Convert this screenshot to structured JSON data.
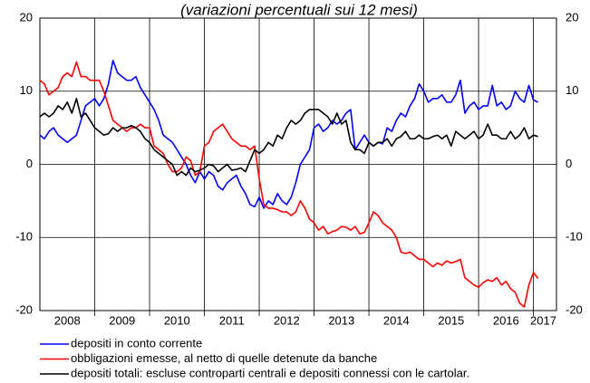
{
  "chart_data": {
    "type": "line",
    "title": "(variazioni percentuali sui 12 mesi)",
    "x": [
      2008.0,
      2008.083,
      2008.167,
      2008.25,
      2008.333,
      2008.417,
      2008.5,
      2008.583,
      2008.667,
      2008.75,
      2008.833,
      2008.917,
      2009.0,
      2009.083,
      2009.167,
      2009.25,
      2009.333,
      2009.417,
      2009.5,
      2009.583,
      2009.667,
      2009.75,
      2009.833,
      2009.917,
      2010.0,
      2010.083,
      2010.167,
      2010.25,
      2010.333,
      2010.417,
      2010.5,
      2010.583,
      2010.667,
      2010.75,
      2010.833,
      2010.917,
      2011.0,
      2011.083,
      2011.167,
      2011.25,
      2011.333,
      2011.417,
      2011.5,
      2011.583,
      2011.667,
      2011.75,
      2011.833,
      2011.917,
      2012.0,
      2012.083,
      2012.167,
      2012.25,
      2012.333,
      2012.417,
      2012.5,
      2012.583,
      2012.667,
      2012.75,
      2012.833,
      2012.917,
      2013.0,
      2013.083,
      2013.167,
      2013.25,
      2013.333,
      2013.417,
      2013.5,
      2013.583,
      2013.667,
      2013.75,
      2013.833,
      2013.917,
      2014.0,
      2014.083,
      2014.167,
      2014.25,
      2014.333,
      2014.417,
      2014.5,
      2014.583,
      2014.667,
      2014.75,
      2014.833,
      2014.917,
      2015.0,
      2015.083,
      2015.167,
      2015.25,
      2015.333,
      2015.417,
      2015.5,
      2015.583,
      2015.667,
      2015.75,
      2015.833,
      2015.917,
      2016.0,
      2016.083,
      2016.167,
      2016.25,
      2016.333,
      2016.417,
      2016.5,
      2016.583,
      2016.667,
      2016.75,
      2016.833,
      2016.917,
      2017.0,
      2017.083
    ],
    "series": [
      {
        "name": "depositi in conto corrente",
        "color": "#0000ff",
        "values": [
          4,
          3.5,
          4.5,
          5,
          4,
          3.5,
          3,
          3.5,
          4,
          6,
          8,
          8.5,
          9,
          8,
          9,
          11,
          14.2,
          12.5,
          12,
          11.5,
          11.5,
          12,
          10.5,
          9.5,
          8.5,
          7.5,
          6,
          4,
          3.5,
          3,
          2,
          1,
          0,
          -1.5,
          -2.5,
          -1,
          -2,
          -1,
          -1.5,
          -3,
          -3.5,
          -2.5,
          -2,
          -1.5,
          -3,
          -4,
          -5.5,
          -5.8,
          -4.5,
          -6,
          -5,
          -5.5,
          -4,
          -5,
          -5.5,
          -4.5,
          -2.5,
          0,
          1,
          2,
          5,
          5.5,
          4.5,
          5,
          6,
          5.5,
          6,
          7,
          7.5,
          2,
          3,
          4,
          3,
          2.5,
          3,
          2.8,
          5,
          4.5,
          6,
          7,
          6.5,
          8,
          9,
          11,
          10,
          8.5,
          9,
          9,
          9.5,
          8.5,
          8.5,
          9.5,
          11.5,
          7,
          8,
          8.5,
          7.5,
          8,
          8,
          10.8,
          8,
          8.5,
          7.5,
          8,
          10,
          9,
          8.5,
          10.8,
          8.8,
          8.5
        ]
      },
      {
        "name": "obbligazioni emesse, al netto di quelle detenute da banche",
        "color": "#ff0000",
        "values": [
          11.5,
          11,
          9.5,
          10,
          10.5,
          12,
          12.5,
          12,
          14,
          12,
          12,
          11.5,
          11.5,
          11.5,
          10,
          8,
          6,
          5.5,
          5,
          4.5,
          5,
          5,
          5.5,
          5,
          5,
          2.5,
          2,
          1.5,
          0,
          -1,
          -1,
          -0.5,
          1,
          0.5,
          -1.5,
          -1,
          2.5,
          3,
          4.5,
          5,
          5.5,
          4.5,
          3.5,
          3,
          2.5,
          2.5,
          2,
          2.5,
          -2,
          -5.5,
          -6,
          -6,
          -6.2,
          -6.5,
          -6.5,
          -7,
          -6.5,
          -5,
          -6,
          -7.5,
          -8,
          -9,
          -8.5,
          -9.5,
          -9.2,
          -9,
          -8.5,
          -8.6,
          -9,
          -8.5,
          -9.5,
          -9.3,
          -8,
          -6.5,
          -7,
          -8,
          -8.5,
          -9,
          -10,
          -12,
          -12.2,
          -12,
          -12.5,
          -13,
          -13,
          -13.5,
          -14,
          -13.5,
          -13.8,
          -13.2,
          -13.5,
          -13.3,
          -13,
          -15.5,
          -16,
          -16.5,
          -16.8,
          -16.2,
          -15.8,
          -16,
          -15.5,
          -16.5,
          -16,
          -17,
          -17.5,
          -19,
          -19.5,
          -16.5,
          -14.8,
          -15.6
        ]
      },
      {
        "name": "depositi totali: escluse controparti centrali e depositi connessi con le cartolar.",
        "color": "#000000",
        "values": [
          6.5,
          7,
          6.5,
          7,
          8,
          7.5,
          8.5,
          7,
          9,
          6.5,
          7,
          6,
          5,
          4.5,
          4,
          4.2,
          5,
          4.5,
          5,
          5,
          5.3,
          5,
          4.5,
          3.5,
          3,
          2,
          1.5,
          1,
          0.5,
          0,
          -1.5,
          -1,
          -1.5,
          -0.5,
          -1,
          -0.8,
          -0.5,
          0,
          -0.2,
          -1,
          -0.5,
          0,
          -0.8,
          -0.7,
          -0.5,
          -1,
          0.5,
          2,
          1.5,
          2,
          3,
          2.5,
          4,
          3.5,
          5,
          6,
          5.5,
          6,
          7,
          7.5,
          7.5,
          7.5,
          7,
          6.5,
          5.5,
          7,
          5.5,
          6,
          3,
          2,
          2,
          1.5,
          3,
          2.5,
          3,
          3,
          3.5,
          2.5,
          3.5,
          3.8,
          4.5,
          3.5,
          3.5,
          4,
          3.5,
          3.5,
          3.8,
          4,
          3.5,
          4,
          2.5,
          4.5,
          4,
          3.5,
          4,
          4.5,
          3.5,
          4,
          5.5,
          4,
          4,
          3.5,
          3.5,
          4.5,
          3.5,
          4,
          5,
          3.5,
          4,
          3.8
        ]
      }
    ],
    "xlim": [
      2008,
      2017.42
    ],
    "xticks": [
      {
        "value": 2008.5,
        "label": "2008"
      },
      {
        "value": 2009.5,
        "label": "2009"
      },
      {
        "value": 2010.5,
        "label": "2010"
      },
      {
        "value": 2011.5,
        "label": "2011"
      },
      {
        "value": 2012.5,
        "label": "2012"
      },
      {
        "value": 2013.5,
        "label": "2013"
      },
      {
        "value": 2014.5,
        "label": "2014"
      },
      {
        "value": 2015.5,
        "label": "2015"
      },
      {
        "value": 2016.5,
        "label": "2016"
      },
      {
        "value": 2017.18,
        "label": "2017"
      }
    ],
    "xgrid": [
      2009,
      2010,
      2011,
      2012,
      2013,
      2014,
      2015,
      2016,
      2017
    ],
    "ylim": [
      -20,
      20
    ],
    "yticks": [
      -20,
      -10,
      0,
      10,
      20
    ],
    "y2lim": [
      -20,
      20
    ],
    "y2ticks": [
      -20,
      -10,
      0,
      10,
      20
    ],
    "grid": true
  }
}
